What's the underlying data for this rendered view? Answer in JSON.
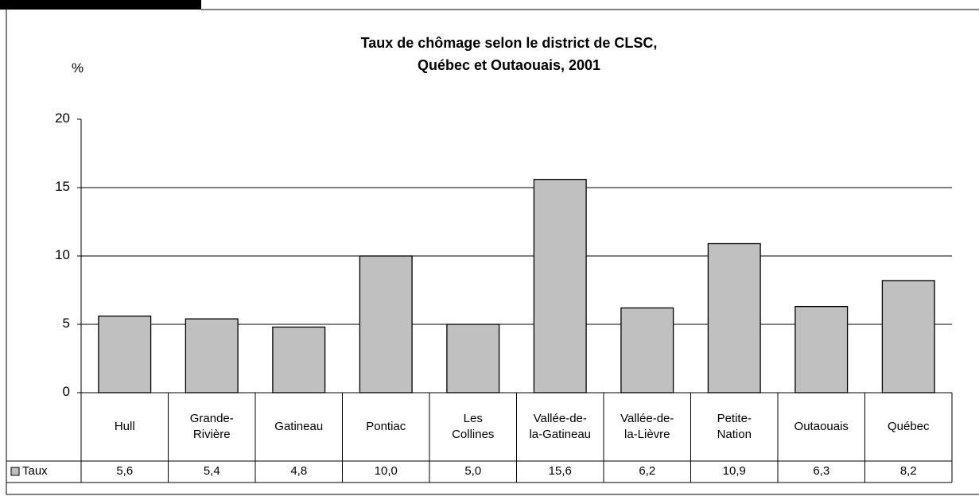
{
  "chart_data": {
    "type": "bar",
    "title": "Taux de chômage selon le district de CLSC,\nQuébec et Outaouais, 2001",
    "y_axis_label": "%",
    "categories": [
      "Hull",
      "Grande-\nRivière",
      "Gatineau",
      "Pontiac",
      "Les\nCollines",
      "Vallée-de-\nla-Gatineau",
      "Vallée-de-\nla-Lièvre",
      "Petite-\nNation",
      "Outaouais",
      "Québec"
    ],
    "series": [
      {
        "name": "Taux",
        "color": "#c0c0c0",
        "values": [
          5.6,
          5.4,
          4.8,
          10.0,
          5.0,
          15.6,
          6.2,
          10.9,
          6.3,
          8.2
        ],
        "value_labels": [
          "5,6",
          "5,4",
          "4,8",
          "10,0",
          "5,0",
          "15,6",
          "6,2",
          "10,9",
          "6,3",
          "8,2"
        ]
      }
    ],
    "ylim": [
      0,
      20
    ],
    "yticks": [
      0,
      5,
      10,
      15,
      20
    ],
    "grid": true
  }
}
